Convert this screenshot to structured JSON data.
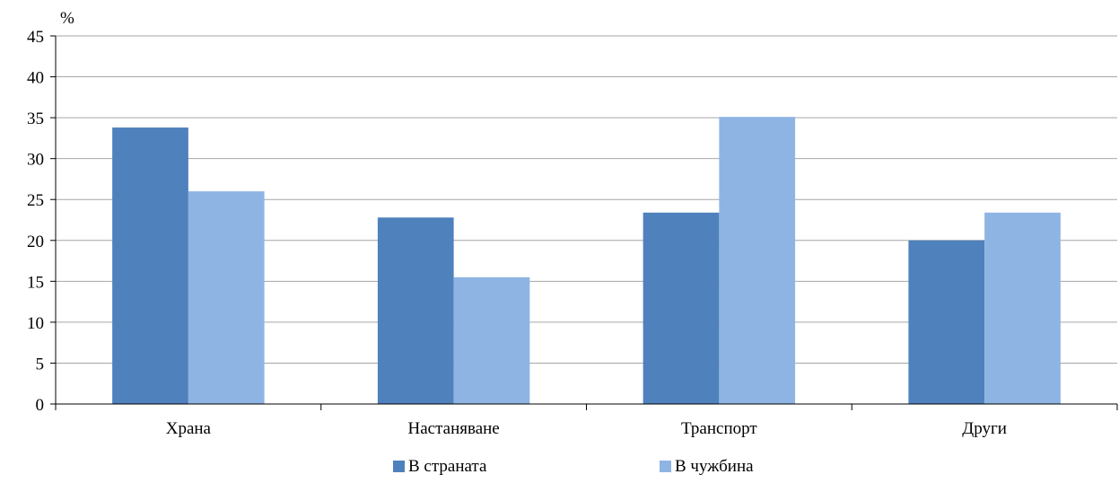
{
  "chart_data": {
    "type": "bar",
    "ylabel": "%",
    "ylim": [
      0,
      45
    ],
    "yticks": [
      0,
      5,
      10,
      15,
      20,
      25,
      30,
      35,
      40,
      45
    ],
    "categories": [
      "Храна",
      "Настаняване",
      "Транспорт",
      "Други"
    ],
    "series": [
      {
        "name": "В страната",
        "color": "#4f81bd",
        "values": [
          33.8,
          22.8,
          23.4,
          20.0
        ]
      },
      {
        "name": "В чужбина",
        "color": "#8eb4e3",
        "values": [
          26.0,
          15.5,
          35.1,
          23.4
        ]
      }
    ],
    "grid": true,
    "gridline_color": "#a6a6a6",
    "legend_position": "bottom"
  }
}
